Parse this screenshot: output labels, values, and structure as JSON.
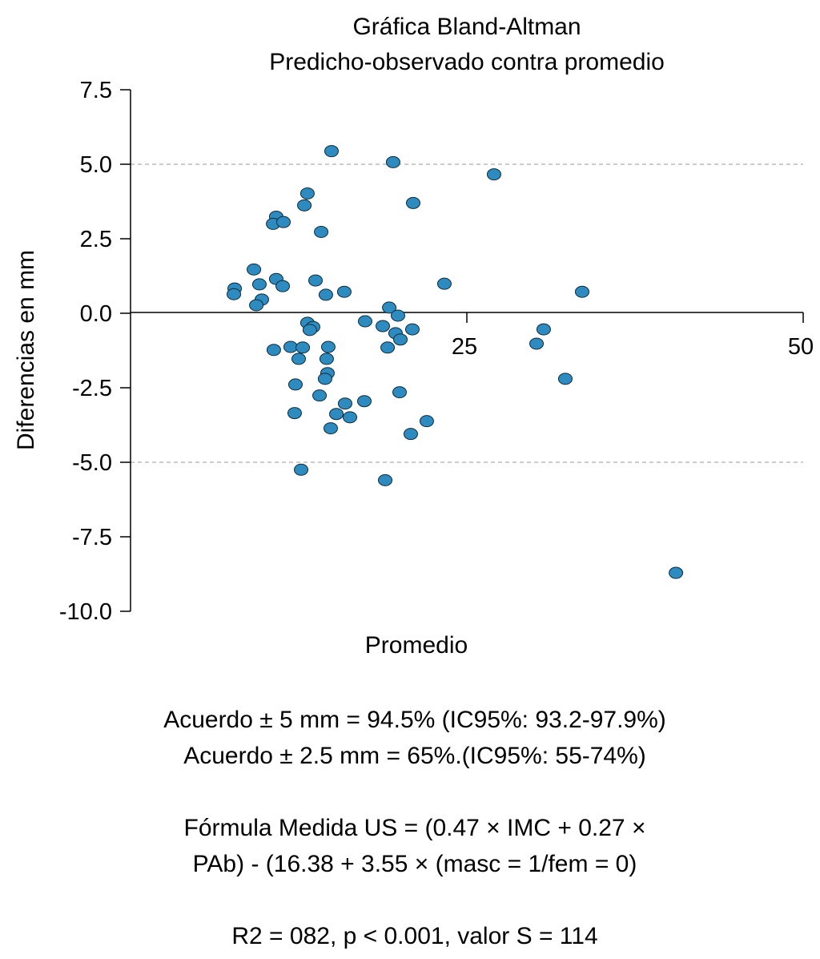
{
  "chart_data": {
    "type": "scatter",
    "title": "Gráfica Bland-Altman",
    "subtitle": "Predicho-observado contra promedio",
    "xlabel": "Promedio",
    "ylabel": "Diferencias en mm",
    "xlim": [
      0,
      50
    ],
    "ylim": [
      -10,
      7.5
    ],
    "xticks": [
      {
        "v": 25,
        "label": "25"
      },
      {
        "v": 50,
        "label": "50"
      }
    ],
    "yticks": [
      {
        "v": 7.5,
        "label": "7.5"
      },
      {
        "v": 5,
        "label": "5.0"
      },
      {
        "v": 2.5,
        "label": "2.5"
      },
      {
        "v": 0,
        "label": "0.0"
      },
      {
        "v": -2.5,
        "label": "-2.5"
      },
      {
        "v": -5,
        "label": "-5.0"
      },
      {
        "v": -7.5,
        "label": "-7.5"
      },
      {
        "v": -10,
        "label": "-10.0"
      }
    ],
    "reference_lines": [
      5,
      -5
    ],
    "point_color": "#2e8bbf",
    "points": [
      [
        14.94,
        5.44
      ],
      [
        19.52,
        5.07
      ],
      [
        27.02,
        4.66
      ],
      [
        13.15,
        4.02
      ],
      [
        21.01,
        3.7
      ],
      [
        12.92,
        3.62
      ],
      [
        10.83,
        3.24
      ],
      [
        10.6,
        3.0
      ],
      [
        11.37,
        3.06
      ],
      [
        14.17,
        2.73
      ],
      [
        9.17,
        1.47
      ],
      [
        10.83,
        1.15
      ],
      [
        7.74,
        0.83
      ],
      [
        9.58,
        0.97
      ],
      [
        11.31,
        0.91
      ],
      [
        13.75,
        1.1
      ],
      [
        23.33,
        0.99
      ],
      [
        33.57,
        0.72
      ],
      [
        7.68,
        0.64
      ],
      [
        9.76,
        0.46
      ],
      [
        15.89,
        0.72
      ],
      [
        14.52,
        0.62
      ],
      [
        9.35,
        0.27
      ],
      [
        19.23,
        0.19
      ],
      [
        19.88,
        -0.08
      ],
      [
        17.44,
        -0.27
      ],
      [
        13.15,
        -0.32
      ],
      [
        18.75,
        -0.43
      ],
      [
        13.57,
        -0.46
      ],
      [
        13.33,
        -0.56
      ],
      [
        20.95,
        -0.54
      ],
      [
        30.71,
        -0.54
      ],
      [
        19.7,
        -0.67
      ],
      [
        20.06,
        -0.88
      ],
      [
        30.18,
        -1.02
      ],
      [
        11.9,
        -1.13
      ],
      [
        12.8,
        -1.15
      ],
      [
        14.7,
        -1.13
      ],
      [
        19.11,
        -1.15
      ],
      [
        10.65,
        -1.23
      ],
      [
        12.5,
        -1.53
      ],
      [
        14.58,
        -1.53
      ],
      [
        14.64,
        -2.01
      ],
      [
        14.46,
        -2.2
      ],
      [
        32.32,
        -2.2
      ],
      [
        12.26,
        -2.39
      ],
      [
        14.05,
        -2.76
      ],
      [
        20.0,
        -2.65
      ],
      [
        15.95,
        -3.03
      ],
      [
        17.38,
        -2.95
      ],
      [
        15.3,
        -3.38
      ],
      [
        16.31,
        -3.49
      ],
      [
        12.2,
        -3.35
      ],
      [
        22.02,
        -3.62
      ],
      [
        14.88,
        -3.86
      ],
      [
        20.83,
        -4.05
      ],
      [
        12.68,
        -5.25
      ],
      [
        18.93,
        -5.6
      ],
      [
        40.54,
        -8.71
      ]
    ],
    "annotations": [
      "Acuerdo ± 5 mm = 94.5% (IC95%: 93.2-97.9%)",
      "Acuerdo ± 2.5 mm = 65%.(IC95%: 55-74%)",
      "Fórmula Medida US = (0.47 × IMC + 0.27 ×",
      "PAb) - (16.38 + 3.55 × (masc = 1/fem = 0)",
      "R2 = 082, p < 0.001, valor S = 114"
    ]
  }
}
